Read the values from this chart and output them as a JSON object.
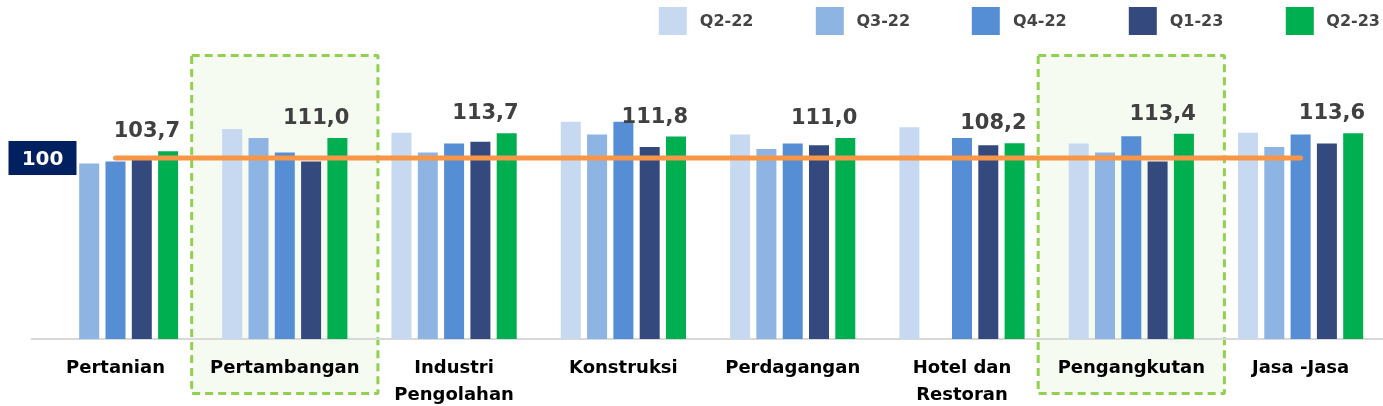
{
  "chart_data": {
    "type": "bar",
    "categories": [
      "Pertanian",
      "Pertambangan",
      "Industri Pengolahan",
      "Konstruksi",
      "Perdagangan",
      "Hotel dan Restoran",
      "Pengangkutan",
      "Jasa -Jasa"
    ],
    "series": [
      {
        "name": "Q2-22",
        "color": "#c6d9f1",
        "values": [
          null,
          116,
          114,
          120,
          113,
          117,
          108,
          114
        ]
      },
      {
        "name": "Q3-22",
        "color": "#8eb4e3",
        "values": [
          97,
          111,
          103,
          113,
          105,
          null,
          103,
          106
        ]
      },
      {
        "name": "Q4-22",
        "color": "#558ed5",
        "values": [
          98,
          103,
          108,
          120,
          108,
          111,
          112,
          113
        ]
      },
      {
        "name": "Q1-23",
        "color": "#344a7e",
        "values": [
          99,
          98,
          109,
          106,
          107,
          107,
          98,
          108
        ]
      },
      {
        "name": "Q2-23",
        "color": "#00b050",
        "values": [
          103.7,
          111.0,
          113.7,
          111.8,
          111.0,
          108.2,
          113.4,
          113.6
        ],
        "value_labels": [
          "103,7",
          "111,0",
          "113,7",
          "111,8",
          "111,0",
          "108,2",
          "113,4",
          "113,6"
        ]
      }
    ],
    "ref_lines": [
      {
        "axis": "y",
        "value": 100,
        "label": "100",
        "color": "#f79646"
      }
    ],
    "bands": [
      {
        "axis": "x",
        "from": "Pertambangan",
        "to": "Pertambangan",
        "color": "#92d050"
      },
      {
        "axis": "x",
        "from": "Pengangkutan",
        "to": "Pengangkutan",
        "color": "#92d050"
      }
    ],
    "ylim": [
      0,
      187
    ],
    "legend": "top right",
    "grid": false
  }
}
